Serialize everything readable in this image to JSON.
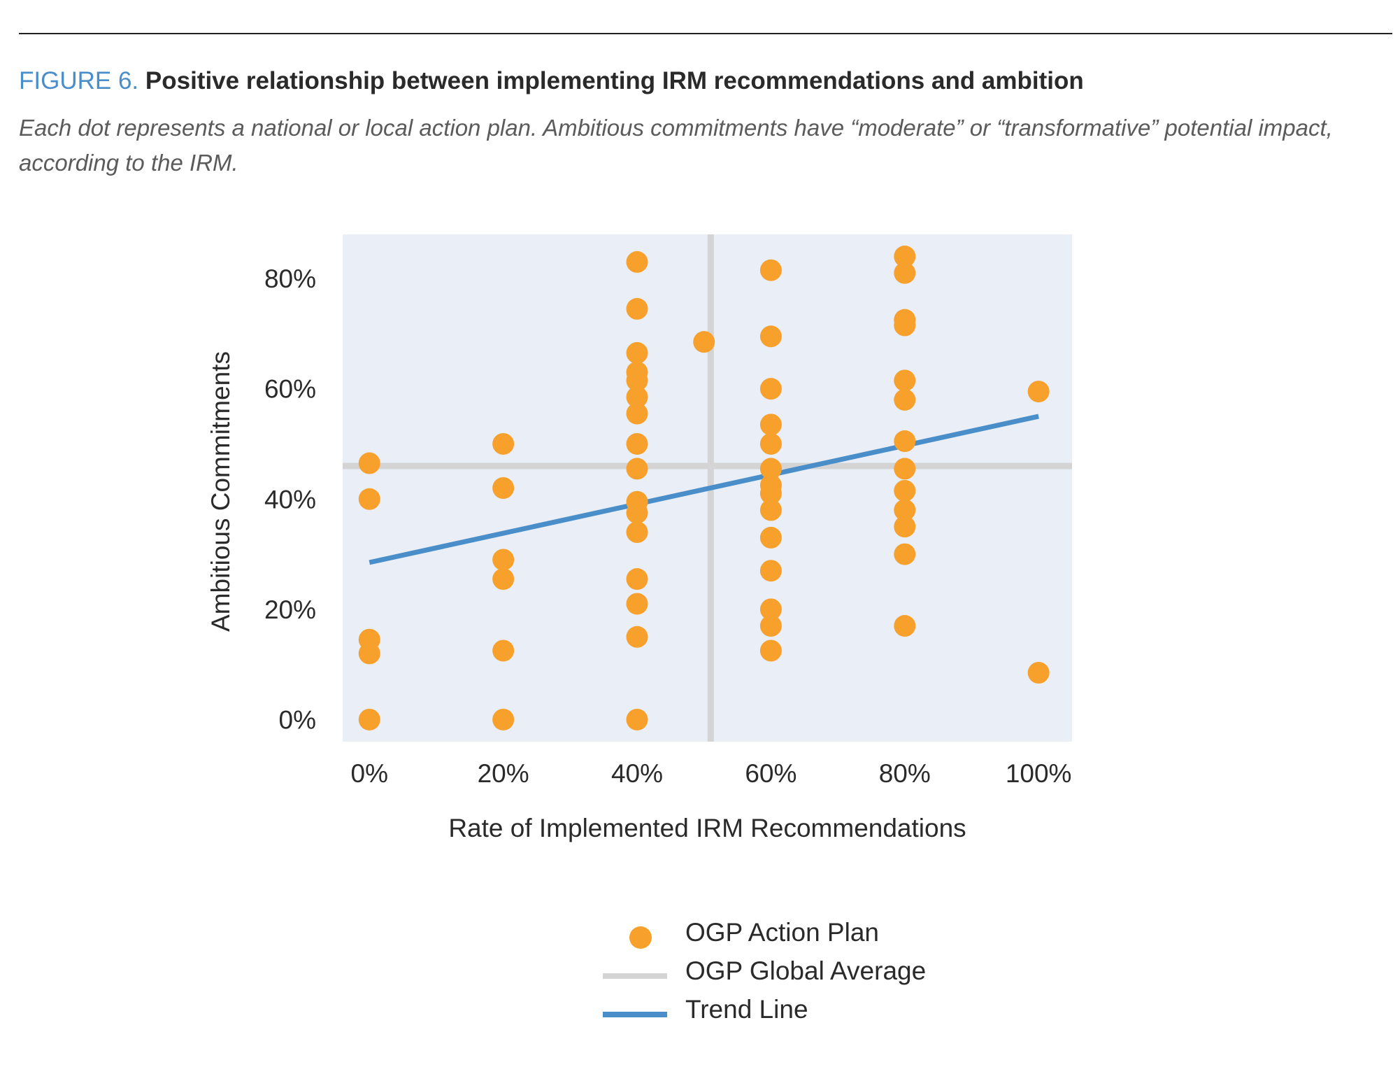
{
  "figure": {
    "label": "FIGURE 6.",
    "title": "Positive relationship between implementing IRM recommendations and ambition",
    "subtitle": "Each dot represents a national or local action plan. Ambitious commitments have “moderate” or “transformative” potential impact, according to the IRM."
  },
  "chart_data": {
    "type": "scatter",
    "xlabel": "Rate of Implemented IRM Recommendations",
    "ylabel": "Ambitious Commitments",
    "xlim": [
      -0.04,
      1.05
    ],
    "ylim": [
      -0.04,
      0.88
    ],
    "x_ticks": [
      0,
      0.2,
      0.4,
      0.6,
      0.8,
      1.0
    ],
    "x_tick_labels": [
      "0%",
      "20%",
      "40%",
      "60%",
      "80%",
      "100%"
    ],
    "y_ticks": [
      0,
      0.2,
      0.4,
      0.6,
      0.8
    ],
    "y_tick_labels": [
      "0%",
      "20%",
      "40%",
      "60%",
      "80%"
    ],
    "grid": false,
    "plot_background": "#e9eef7",
    "legend_position": "bottom-center",
    "series": [
      {
        "name": "OGP Action Plan",
        "kind": "points",
        "color": "#f7a02c",
        "points": [
          [
            0,
            0.465
          ],
          [
            0,
            0.4
          ],
          [
            0,
            0.145
          ],
          [
            0,
            0.12
          ],
          [
            0,
            0.0
          ],
          [
            0.2,
            0.5
          ],
          [
            0.2,
            0.42
          ],
          [
            0.2,
            0.29
          ],
          [
            0.2,
            0.255
          ],
          [
            0.2,
            0.125
          ],
          [
            0.2,
            0.0
          ],
          [
            0.4,
            0.83
          ],
          [
            0.4,
            0.745
          ],
          [
            0.4,
            0.665
          ],
          [
            0.4,
            0.63
          ],
          [
            0.4,
            0.615
          ],
          [
            0.4,
            0.585
          ],
          [
            0.4,
            0.555
          ],
          [
            0.4,
            0.5
          ],
          [
            0.4,
            0.455
          ],
          [
            0.4,
            0.395
          ],
          [
            0.4,
            0.375
          ],
          [
            0.4,
            0.34
          ],
          [
            0.4,
            0.255
          ],
          [
            0.4,
            0.21
          ],
          [
            0.4,
            0.15
          ],
          [
            0.4,
            0.0
          ],
          [
            0.5,
            0.685
          ],
          [
            0.6,
            0.815
          ],
          [
            0.6,
            0.695
          ],
          [
            0.6,
            0.6
          ],
          [
            0.6,
            0.535
          ],
          [
            0.6,
            0.5
          ],
          [
            0.6,
            0.455
          ],
          [
            0.6,
            0.425
          ],
          [
            0.6,
            0.41
          ],
          [
            0.6,
            0.38
          ],
          [
            0.6,
            0.33
          ],
          [
            0.6,
            0.27
          ],
          [
            0.6,
            0.2
          ],
          [
            0.6,
            0.17
          ],
          [
            0.6,
            0.125
          ],
          [
            0.8,
            0.84
          ],
          [
            0.8,
            0.81
          ],
          [
            0.8,
            0.725
          ],
          [
            0.8,
            0.715
          ],
          [
            0.8,
            0.615
          ],
          [
            0.8,
            0.58
          ],
          [
            0.8,
            0.505
          ],
          [
            0.8,
            0.455
          ],
          [
            0.8,
            0.415
          ],
          [
            0.8,
            0.38
          ],
          [
            0.8,
            0.35
          ],
          [
            0.8,
            0.3
          ],
          [
            0.8,
            0.17
          ],
          [
            1.0,
            0.595
          ],
          [
            1.0,
            0.085
          ]
        ]
      },
      {
        "name": "OGP Global Average",
        "kind": "reference-lines",
        "color": "#d4d4d4",
        "x": 0.51,
        "y": 0.46
      },
      {
        "name": "Trend Line",
        "kind": "line",
        "color": "#4a8ec9",
        "x": [
          0,
          1.0
        ],
        "y": [
          0.285,
          0.55
        ]
      }
    ]
  },
  "legend": [
    {
      "label": "OGP Action Plan",
      "marker": "dot",
      "color": "#f7a02c"
    },
    {
      "label": "OGP Global Average",
      "marker": "line",
      "color": "#d4d4d4"
    },
    {
      "label": "Trend Line",
      "marker": "line",
      "color": "#4a8ec9"
    }
  ]
}
